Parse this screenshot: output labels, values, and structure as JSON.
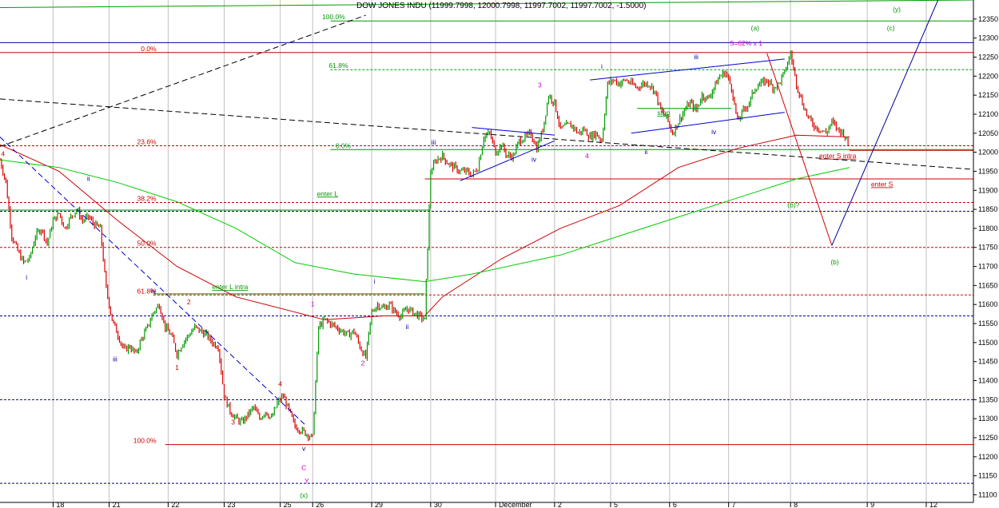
{
  "title": "DOW JONES INDU (11999.7998, 12000.7998, 11997.7002, 11997.7002, -1.5000)",
  "chart_data": {
    "type": "candlestick",
    "symbol": "DOW JONES INDU",
    "ylim": [
      11080,
      12400
    ],
    "yticks": [
      11100,
      11150,
      11200,
      11250,
      11300,
      11350,
      11400,
      11450,
      11500,
      11550,
      11600,
      11650,
      11700,
      11750,
      11800,
      11850,
      11900,
      11950,
      12000,
      12050,
      12100,
      12150,
      12200,
      12250,
      12300,
      12350
    ],
    "xtick_labels": [
      {
        "label": "18",
        "t": 9
      },
      {
        "label": "21",
        "t": 18.5
      },
      {
        "label": "22",
        "t": 28.5
      },
      {
        "label": "23",
        "t": 38
      },
      {
        "label": "25",
        "t": 47.5
      },
      {
        "label": "26",
        "t": 53
      },
      {
        "label": "29",
        "t": 63
      },
      {
        "label": "30",
        "t": 73
      },
      {
        "label": "December",
        "t": 84
      },
      {
        "label": "2",
        "t": 94
      },
      {
        "label": "5",
        "t": 103.5
      },
      {
        "label": "6",
        "t": 113.5
      },
      {
        "label": "7",
        "t": 123.5
      },
      {
        "label": "8",
        "t": 134
      },
      {
        "label": "9",
        "t": 147
      },
      {
        "label": "12",
        "t": 157
      }
    ],
    "price_path": [
      [
        0,
        11980
      ],
      [
        1,
        11920
      ],
      [
        2,
        11780
      ],
      [
        3,
        11740
      ],
      [
        4,
        11710
      ],
      [
        5,
        11720
      ],
      [
        6,
        11780
      ],
      [
        7,
        11800
      ],
      [
        8,
        11760
      ],
      [
        9,
        11820
      ],
      [
        10,
        11840
      ],
      [
        11,
        11800
      ],
      [
        12,
        11830
      ],
      [
        13,
        11850
      ],
      [
        14,
        11820
      ],
      [
        15,
        11830
      ],
      [
        16,
        11810
      ],
      [
        17,
        11800
      ],
      [
        18,
        11640
      ],
      [
        19,
        11560
      ],
      [
        20,
        11520
      ],
      [
        21,
        11480
      ],
      [
        22,
        11490
      ],
      [
        23,
        11470
      ],
      [
        24,
        11510
      ],
      [
        25,
        11540
      ],
      [
        26,
        11580
      ],
      [
        27,
        11600
      ],
      [
        28,
        11540
      ],
      [
        29,
        11520
      ],
      [
        30,
        11470
      ],
      [
        31,
        11500
      ],
      [
        32,
        11520
      ],
      [
        33,
        11540
      ],
      [
        34,
        11530
      ],
      [
        35,
        11520
      ],
      [
        36,
        11500
      ],
      [
        37,
        11490
      ],
      [
        38,
        11360
      ],
      [
        39,
        11320
      ],
      [
        40,
        11300
      ],
      [
        41,
        11290
      ],
      [
        42,
        11310
      ],
      [
        43,
        11330
      ],
      [
        44,
        11300
      ],
      [
        45,
        11320
      ],
      [
        46,
        11300
      ],
      [
        47,
        11340
      ],
      [
        48,
        11360
      ],
      [
        49,
        11320
      ],
      [
        50,
        11280
      ],
      [
        51,
        11270
      ],
      [
        52,
        11260
      ],
      [
        53,
        11250
      ],
      [
        54,
        11540
      ],
      [
        55,
        11560
      ],
      [
        56,
        11550
      ],
      [
        57,
        11540
      ],
      [
        58,
        11530
      ],
      [
        59,
        11520
      ],
      [
        60,
        11530
      ],
      [
        61,
        11490
      ],
      [
        62,
        11460
      ],
      [
        63,
        11580
      ],
      [
        64,
        11600
      ],
      [
        65,
        11590
      ],
      [
        66,
        11600
      ],
      [
        67,
        11580
      ],
      [
        68,
        11570
      ],
      [
        69,
        11590
      ],
      [
        70,
        11580
      ],
      [
        71,
        11570
      ],
      [
        72,
        11560
      ],
      [
        73,
        11950
      ],
      [
        74,
        11980
      ],
      [
        75,
        11990
      ],
      [
        76,
        11970
      ],
      [
        77,
        11960
      ],
      [
        78,
        11950
      ],
      [
        79,
        11950
      ],
      [
        80,
        11940
      ],
      [
        81,
        11960
      ],
      [
        82,
        12040
      ],
      [
        83,
        12050
      ],
      [
        84,
        12000
      ],
      [
        85,
        12020
      ],
      [
        86,
        11990
      ],
      [
        87,
        11990
      ],
      [
        88,
        12030
      ],
      [
        89,
        12040
      ],
      [
        90,
        12050
      ],
      [
        91,
        12010
      ],
      [
        92,
        12060
      ],
      [
        93,
        12150
      ],
      [
        94,
        12130
      ],
      [
        95,
        12060
      ],
      [
        96,
        12070
      ],
      [
        97,
        12070
      ],
      [
        98,
        12050
      ],
      [
        99,
        12060
      ],
      [
        100,
        12040
      ],
      [
        101,
        12050
      ],
      [
        102,
        12030
      ],
      [
        103,
        12180
      ],
      [
        104,
        12190
      ],
      [
        105,
        12180
      ],
      [
        106,
        12190
      ],
      [
        107,
        12180
      ],
      [
        108,
        12170
      ],
      [
        109,
        12180
      ],
      [
        110,
        12180
      ],
      [
        111,
        12160
      ],
      [
        112,
        12110
      ],
      [
        113,
        12090
      ],
      [
        114,
        12050
      ],
      [
        115,
        12080
      ],
      [
        116,
        12110
      ],
      [
        117,
        12130
      ],
      [
        118,
        12110
      ],
      [
        119,
        12150
      ],
      [
        120,
        12140
      ],
      [
        121,
        12170
      ],
      [
        122,
        12200
      ],
      [
        123,
        12210
      ],
      [
        124,
        12170
      ],
      [
        125,
        12080
      ],
      [
        126,
        12110
      ],
      [
        127,
        12130
      ],
      [
        128,
        12170
      ],
      [
        129,
        12180
      ],
      [
        130,
        12190
      ],
      [
        131,
        12170
      ],
      [
        132,
        12180
      ],
      [
        133,
        12210
      ],
      [
        134,
        12260
      ],
      [
        135,
        12180
      ],
      [
        136,
        12130
      ],
      [
        137,
        12090
      ],
      [
        138,
        12070
      ],
      [
        139,
        12060
      ],
      [
        140,
        12050
      ],
      [
        141,
        12080
      ],
      [
        142,
        12060
      ],
      [
        143,
        12050
      ],
      [
        144,
        12010
      ]
    ],
    "moving_averages": [
      {
        "color": "#cc0000",
        "points": [
          [
            0,
            12020
          ],
          [
            10,
            11950
          ],
          [
            20,
            11820
          ],
          [
            30,
            11700
          ],
          [
            40,
            11620
          ],
          [
            50,
            11580
          ],
          [
            55,
            11560
          ],
          [
            60,
            11565
          ],
          [
            65,
            11570
          ],
          [
            72,
            11570
          ],
          [
            75,
            11620
          ],
          [
            85,
            11720
          ],
          [
            95,
            11800
          ],
          [
            105,
            11860
          ],
          [
            115,
            11960
          ],
          [
            125,
            12010
          ],
          [
            135,
            12045
          ],
          [
            144,
            12040
          ]
        ]
      },
      {
        "color": "#00cc00",
        "points": [
          [
            0,
            11980
          ],
          [
            10,
            11960
          ],
          [
            20,
            11920
          ],
          [
            30,
            11870
          ],
          [
            40,
            11800
          ],
          [
            50,
            11710
          ],
          [
            60,
            11680
          ],
          [
            72,
            11660
          ],
          [
            80,
            11680
          ],
          [
            95,
            11730
          ],
          [
            105,
            11780
          ],
          [
            115,
            11830
          ],
          [
            125,
            11880
          ],
          [
            135,
            11930
          ],
          [
            144,
            11960
          ]
        ]
      }
    ],
    "h_lines": [
      {
        "value": 12345,
        "color": "#009900",
        "dash": false,
        "label": "100.0%",
        "label_color": "#009900",
        "label_t": 58.5,
        "x0": 56
      },
      {
        "value": 12288,
        "color": "#000099",
        "dash": false,
        "label": "",
        "x0": 0
      },
      {
        "value": 12262,
        "color": "#cc0000",
        "dash": false,
        "label": "0.0%",
        "label_color": "#cc0000",
        "label_t": 26.5,
        "x0": 0
      },
      {
        "value": 12217,
        "color": "#009900",
        "dash": true,
        "label": "61.8%",
        "label_color": "#009900",
        "label_t": 59,
        "x0": 56
      },
      {
        "value": 12017,
        "color": "#cc0000",
        "dash": true,
        "label": "23.6%",
        "label_color": "#cc0000",
        "label_t": 26.5,
        "x0": 0
      },
      {
        "value": 12007,
        "color": "#009900",
        "dash": false,
        "label": "0.0%",
        "label_color": "#009900",
        "label_t": 59.5,
        "x0": 56
      },
      {
        "value": 12005,
        "color": "#cc0000",
        "dash": false,
        "label": "",
        "x0": 144,
        "x1": 165
      },
      {
        "value": 11930,
        "color": "#cc0000",
        "dash": false,
        "label": "",
        "x0": 72
      },
      {
        "value": 11868,
        "color": "#cc0000",
        "dash": true,
        "label": "38.2%",
        "label_color": "#cc0000",
        "label_t": 26.5,
        "x0": 0
      },
      {
        "value": 11848,
        "color": "#009900",
        "dash": false,
        "label": "",
        "x0": 0,
        "x1": 73
      },
      {
        "value": 11845,
        "color": "#000099",
        "dash": true,
        "label": "",
        "x0": 0
      },
      {
        "value": 11750,
        "color": "#cc0000",
        "dash": true,
        "label": "50.0%",
        "label_color": "#cc0000",
        "label_t": 26.5,
        "x0": 0
      },
      {
        "value": 11628,
        "color": "#009900",
        "dash": false,
        "label": "",
        "x0": 26,
        "x1": 72
      },
      {
        "value": 11625,
        "color": "#cc0000",
        "dash": true,
        "label": "61.8%",
        "label_color": "#cc0000",
        "label_t": 26.5,
        "x0": 26
      },
      {
        "value": 11570,
        "color": "#000099",
        "dash": true,
        "label": "",
        "x0": 0
      },
      {
        "value": 11350,
        "color": "#000099",
        "dash": true,
        "label": "",
        "x0": 0
      },
      {
        "value": 11232,
        "color": "#cc0000",
        "dash": false,
        "label": "100.0%",
        "label_color": "#cc0000",
        "label_t": 26.5,
        "x0": 28
      },
      {
        "value": 11130,
        "color": "#000099",
        "dash": true,
        "label": "",
        "x0": 0
      }
    ],
    "trend_lines": [
      {
        "color": "#000000",
        "dash": true,
        "points": [
          [
            0,
            12015
          ],
          [
            62,
            12360
          ]
        ]
      },
      {
        "color": "#000000",
        "dash": true,
        "points": [
          [
            0,
            12140
          ],
          [
            165,
            11955
          ]
        ]
      },
      {
        "color": "#0000cc",
        "dash": true,
        "points": [
          [
            0,
            12040
          ],
          [
            52,
            11280
          ]
        ]
      },
      {
        "color": "#0000cc",
        "dash": false,
        "points": [
          [
            78,
            11925
          ],
          [
            94,
            12030
          ]
        ]
      },
      {
        "color": "#0000cc",
        "dash": false,
        "points": [
          [
            80,
            12065
          ],
          [
            94,
            12045
          ]
        ]
      },
      {
        "color": "#0000cc",
        "dash": false,
        "points": [
          [
            100,
            12190
          ],
          [
            133,
            12245
          ]
        ]
      },
      {
        "color": "#0000cc",
        "dash": false,
        "points": [
          [
            107,
            12050
          ],
          [
            133,
            12105
          ]
        ]
      },
      {
        "color": "#009900",
        "dash": false,
        "points": [
          [
            0,
            12380
          ],
          [
            165,
            12400
          ]
        ]
      },
      {
        "color": "#009900",
        "dash": false,
        "points": [
          [
            108,
            12115
          ],
          [
            124,
            12115
          ]
        ]
      },
      {
        "color": "#cc0000",
        "dash": false,
        "points": [
          [
            130,
            12260
          ],
          [
            141,
            11755
          ]
        ]
      },
      {
        "color": "#000099",
        "dash": false,
        "points": [
          [
            141,
            11755
          ],
          [
            159,
            12400
          ]
        ]
      }
    ],
    "annotations": [
      {
        "text": "4",
        "t": 0.5,
        "v": 11990,
        "color": "#cc0000"
      },
      {
        "text": "ii",
        "t": 15,
        "v": 11925,
        "color": "#0000aa"
      },
      {
        "text": "i",
        "t": 4.5,
        "v": 11665,
        "color": "#0000aa"
      },
      {
        "text": "iv",
        "t": 26,
        "v": 11630,
        "color": "#0000aa"
      },
      {
        "text": "2",
        "t": 32,
        "v": 11600,
        "color": "#cc0000"
      },
      {
        "text": "iii",
        "t": 19.5,
        "v": 11450,
        "color": "#0000aa"
      },
      {
        "text": "1",
        "t": 30,
        "v": 11428,
        "color": "#cc0000"
      },
      {
        "text": "3",
        "t": 39.5,
        "v": 11285,
        "color": "#cc0000"
      },
      {
        "text": "4",
        "t": 47.5,
        "v": 11385,
        "color": "#cc0000"
      },
      {
        "text": "v",
        "t": 51.5,
        "v": 11215,
        "color": "#000066"
      },
      {
        "text": "C",
        "t": 51.5,
        "v": 11165,
        "color": "#cc00cc"
      },
      {
        "text": "Y",
        "t": 52,
        "v": 11130,
        "color": "#cc00cc"
      },
      {
        "text": "(x)",
        "t": 51.5,
        "v": 11093,
        "color": "#009900"
      },
      {
        "text": "1",
        "t": 53,
        "v": 11595,
        "color": "#cc00cc"
      },
      {
        "text": "2",
        "t": 61.5,
        "v": 11440,
        "color": "#cc00cc"
      },
      {
        "text": "i",
        "t": 63.5,
        "v": 11655,
        "color": "#0000aa"
      },
      {
        "text": "ii",
        "t": 69,
        "v": 11535,
        "color": "#0000aa"
      },
      {
        "text": "iii",
        "t": 73.5,
        "v": 12020,
        "color": "#0000aa"
      },
      {
        "text": "3",
        "t": 91.5,
        "v": 12170,
        "color": "#cc00cc"
      },
      {
        "text": "iv",
        "t": 90.5,
        "v": 11975,
        "color": "#0000aa"
      },
      {
        "text": "4",
        "t": 99.5,
        "v": 11985,
        "color": "#cc00cc"
      },
      {
        "text": "i",
        "t": 102,
        "v": 12220,
        "color": "#0000aa"
      },
      {
        "text": "ii",
        "t": 109.5,
        "v": 11995,
        "color": "#0000aa"
      },
      {
        "text": "iii",
        "t": 118,
        "v": 12245,
        "color": "#0000aa"
      },
      {
        "text": "iv",
        "t": 121,
        "v": 12047,
        "color": "#0000aa"
      },
      {
        "text": "(a)",
        "t": 128,
        "v": 12320,
        "color": "#009900"
      },
      {
        "text": "5=62% x 1",
        "t": 126.5,
        "v": 12280,
        "color": "#cc00cc"
      },
      {
        "text": "(y)",
        "t": 152,
        "v": 12370,
        "color": "#009900"
      },
      {
        "text": "(c)",
        "t": 151,
        "v": 12320,
        "color": "#009900"
      },
      {
        "text": "enter S intra",
        "t": 142,
        "v": 11985,
        "color": "#cc0000",
        "underline": true
      },
      {
        "text": "enter S",
        "t": 149.5,
        "v": 11910,
        "color": "#cc0000",
        "underline": true
      },
      {
        "text": "(b)?",
        "t": 134.5,
        "v": 11855,
        "color": "#009900"
      },
      {
        "text": "(b)",
        "t": 141.5,
        "v": 11705,
        "color": "#009900"
      },
      {
        "text": "stop",
        "t": 112.5,
        "v": 12098,
        "color": "#009900",
        "underline": true
      },
      {
        "text": "enter L",
        "t": 55.5,
        "v": 11885,
        "color": "#009900",
        "underline": true
      },
      {
        "text": "enter L intra",
        "t": 39,
        "v": 11640,
        "color": "#009900",
        "underline": true
      }
    ]
  }
}
